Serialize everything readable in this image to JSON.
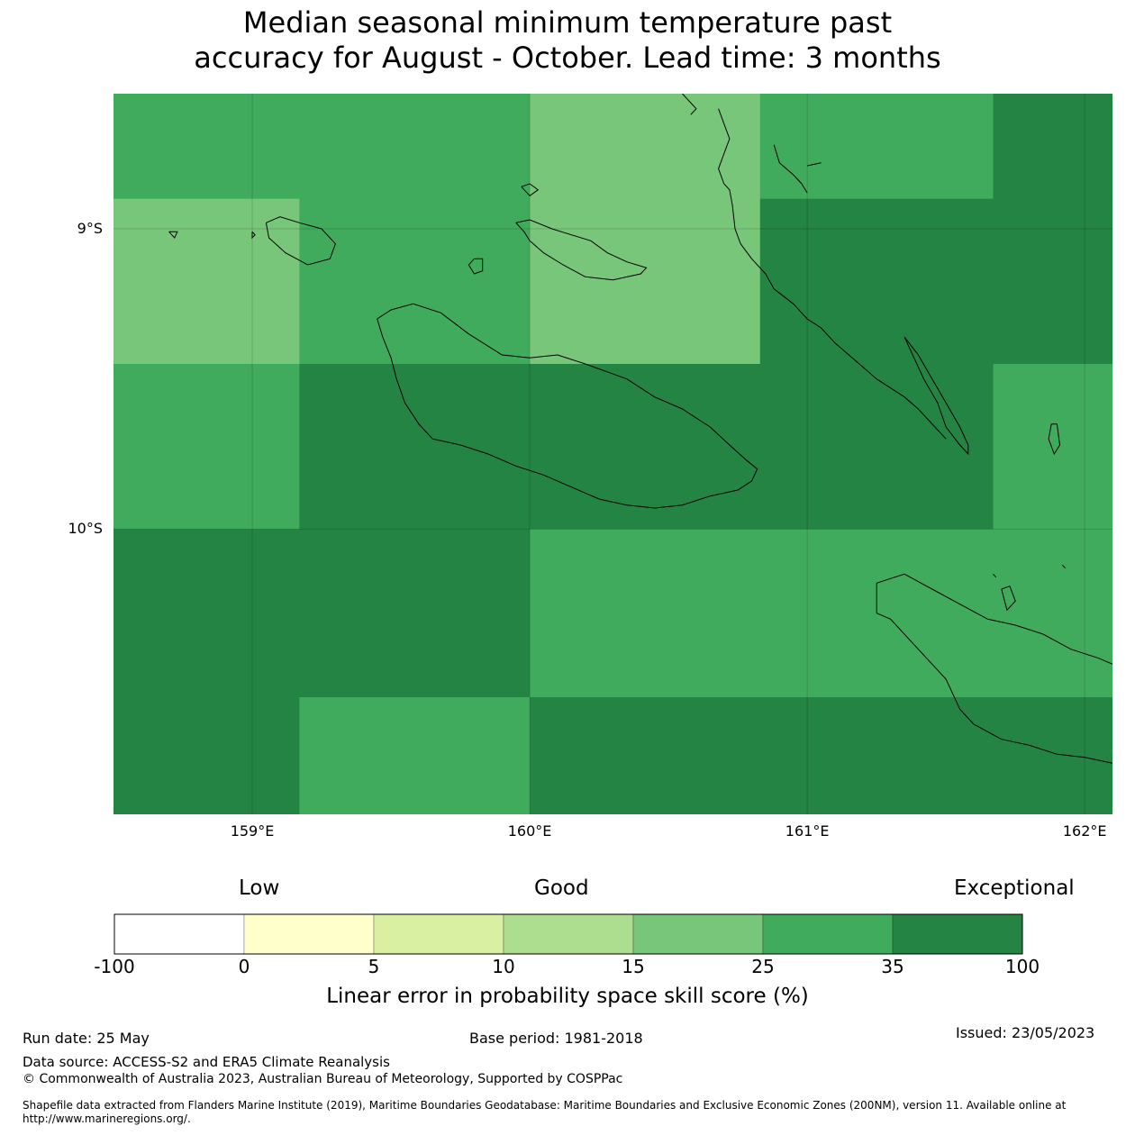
{
  "title_line1": "Median seasonal minimum temperature past",
  "title_line2": "accuracy for August - October. Lead time: 3 months",
  "colors": {
    "lvl_minus100_0": "#ffffff",
    "lvl_0_5": "#ffffcc",
    "lvl_5_10": "#d9f0a3",
    "lvl_10_15": "#addd8e",
    "lvl_15_25": "#78c679",
    "lvl_25_35": "#41ab5d",
    "lvl_35_100": "#238443"
  },
  "map": {
    "lon_range": [
      158.5,
      162.1
    ],
    "lat_range": [
      -10.95,
      -8.55
    ],
    "lat_ticks": [
      {
        "value": -9,
        "label": "9°S"
      },
      {
        "value": -10,
        "label": "10°S"
      }
    ],
    "lon_ticks": [
      {
        "value": 159,
        "label": "159°E"
      },
      {
        "value": 160,
        "label": "160°E"
      },
      {
        "value": 161,
        "label": "161°E"
      },
      {
        "value": 162,
        "label": "162°E"
      }
    ],
    "cells": [
      {
        "lon": [
          158.5,
          160.0
        ],
        "lat": [
          -8.9,
          -8.55
        ],
        "level": "lvl_25_35"
      },
      {
        "lon": [
          160.0,
          160.83
        ],
        "lat": [
          -8.9,
          -8.55
        ],
        "level": "lvl_15_25"
      },
      {
        "lon": [
          160.83,
          161.67
        ],
        "lat": [
          -8.9,
          -8.55
        ],
        "level": "lvl_25_35"
      },
      {
        "lon": [
          161.67,
          162.1
        ],
        "lat": [
          -8.9,
          -8.55
        ],
        "level": "lvl_35_100"
      },
      {
        "lon": [
          158.5,
          159.17
        ],
        "lat": [
          -9.45,
          -8.9
        ],
        "level": "lvl_15_25"
      },
      {
        "lon": [
          159.17,
          160.0
        ],
        "lat": [
          -9.45,
          -8.9
        ],
        "level": "lvl_25_35"
      },
      {
        "lon": [
          160.0,
          160.83
        ],
        "lat": [
          -9.45,
          -8.9
        ],
        "level": "lvl_15_25"
      },
      {
        "lon": [
          160.83,
          162.1
        ],
        "lat": [
          -9.45,
          -8.9
        ],
        "level": "lvl_35_100"
      },
      {
        "lon": [
          158.5,
          159.17
        ],
        "lat": [
          -10.0,
          -9.45
        ],
        "level": "lvl_25_35"
      },
      {
        "lon": [
          159.17,
          161.67
        ],
        "lat": [
          -10.0,
          -9.45
        ],
        "level": "lvl_35_100"
      },
      {
        "lon": [
          161.67,
          162.1
        ],
        "lat": [
          -10.0,
          -9.45
        ],
        "level": "lvl_25_35"
      },
      {
        "lon": [
          158.5,
          160.0
        ],
        "lat": [
          -10.56,
          -10.0
        ],
        "level": "lvl_35_100"
      },
      {
        "lon": [
          160.0,
          162.1
        ],
        "lat": [
          -10.56,
          -10.0
        ],
        "level": "lvl_25_35"
      },
      {
        "lon": [
          158.5,
          159.17
        ],
        "lat": [
          -10.95,
          -10.56
        ],
        "level": "lvl_35_100"
      },
      {
        "lon": [
          159.17,
          160.0
        ],
        "lat": [
          -10.95,
          -10.56
        ],
        "level": "lvl_25_35"
      },
      {
        "lon": [
          160.0,
          162.1
        ],
        "lat": [
          -10.95,
          -10.56
        ],
        "level": "lvl_35_100"
      }
    ],
    "coastlines": [
      {
        "lon": [
          159.45,
          159.5,
          159.58,
          159.68,
          159.78,
          159.9,
          160.0,
          160.1,
          160.2,
          160.35,
          160.45,
          160.55,
          160.65,
          160.72,
          160.78,
          160.82,
          160.8,
          160.75,
          160.65,
          160.55,
          160.45,
          160.35,
          160.25,
          160.15,
          160.05,
          159.95,
          159.85,
          159.75,
          159.65,
          159.6,
          159.55,
          159.52,
          159.5,
          159.47,
          159.45
        ],
        "lat": [
          -9.3,
          -9.27,
          -9.25,
          -9.28,
          -9.35,
          -9.42,
          -9.43,
          -9.42,
          -9.45,
          -9.5,
          -9.56,
          -9.6,
          -9.66,
          -9.72,
          -9.77,
          -9.8,
          -9.84,
          -9.87,
          -9.89,
          -9.92,
          -9.93,
          -9.92,
          -9.9,
          -9.86,
          -9.82,
          -9.79,
          -9.75,
          -9.72,
          -9.7,
          -9.65,
          -9.58,
          -9.5,
          -9.43,
          -9.36,
          -9.3
        ]
      },
      {
        "lon": [
          159.95,
          160.0,
          160.08,
          160.15,
          160.22,
          160.28,
          160.35,
          160.42,
          160.4,
          160.3,
          160.2,
          160.12,
          160.05,
          160.0,
          159.98,
          159.95
        ],
        "lat": [
          -8.98,
          -8.97,
          -9.0,
          -9.02,
          -9.04,
          -9.08,
          -9.11,
          -9.13,
          -9.15,
          -9.17,
          -9.16,
          -9.12,
          -9.08,
          -9.04,
          -9.01,
          -8.98
        ]
      },
      {
        "lon": [
          159.05,
          159.1,
          159.17,
          159.25,
          159.3,
          159.28,
          159.2,
          159.12,
          159.06,
          159.05
        ],
        "lat": [
          -8.98,
          -8.96,
          -8.98,
          -9.0,
          -9.05,
          -9.1,
          -9.12,
          -9.08,
          -9.03,
          -8.98
        ]
      },
      {
        "lon": [
          159.8,
          159.83,
          159.83,
          159.8,
          159.78,
          159.8
        ],
        "lat": [
          -9.1,
          -9.1,
          -9.14,
          -9.15,
          -9.12,
          -9.1
        ]
      },
      {
        "lon": [
          158.7,
          158.73,
          158.72,
          158.7
        ],
        "lat": [
          -9.01,
          -9.01,
          -9.03,
          -9.01
        ]
      },
      {
        "lon": [
          159.0,
          159.01,
          159.0,
          159.0
        ],
        "lat": [
          -9.01,
          -9.02,
          -9.03,
          -9.01
        ]
      },
      {
        "lon": [
          159.97,
          160.0,
          160.03,
          160.0,
          159.97
        ],
        "lat": [
          -8.86,
          -8.85,
          -8.87,
          -8.89,
          -8.86
        ]
      },
      {
        "lon": [
          160.68,
          160.7,
          160.72,
          160.7,
          160.68,
          160.7,
          160.72,
          160.73,
          160.74,
          160.76,
          160.8,
          160.85,
          160.88,
          160.95,
          161.0,
          161.05,
          161.1,
          161.15,
          161.2,
          161.25,
          161.3,
          161.35,
          161.4,
          161.45,
          161.5
        ],
        "lat": [
          -8.6,
          -8.65,
          -8.7,
          -8.75,
          -8.8,
          -8.85,
          -8.87,
          -8.92,
          -9.0,
          -9.05,
          -9.1,
          -9.15,
          -9.2,
          -9.25,
          -9.3,
          -9.33,
          -9.38,
          -9.42,
          -9.46,
          -9.5,
          -9.53,
          -9.56,
          -9.6,
          -9.65,
          -9.7
        ]
      },
      {
        "lon": [
          160.55,
          160.6,
          160.58
        ],
        "lat": [
          -8.55,
          -8.6,
          -8.62
        ]
      },
      {
        "lon": [
          160.88,
          160.9,
          160.95,
          160.98,
          161.0
        ],
        "lat": [
          -8.72,
          -8.78,
          -8.82,
          -8.85,
          -8.88
        ]
      },
      {
        "lon": [
          161.0,
          161.05
        ],
        "lat": [
          -8.79,
          -8.78
        ]
      },
      {
        "lon": [
          161.35,
          161.4,
          161.45,
          161.5,
          161.55,
          161.58,
          161.58,
          161.55,
          161.5,
          161.47,
          161.42,
          161.38,
          161.35
        ],
        "lat": [
          -9.36,
          -9.42,
          -9.5,
          -9.58,
          -9.66,
          -9.72,
          -9.75,
          -9.72,
          -9.66,
          -9.58,
          -9.5,
          -9.42,
          -9.36
        ]
      },
      {
        "lon": [
          161.88,
          161.9,
          161.91,
          161.89,
          161.87,
          161.88
        ],
        "lat": [
          -9.65,
          -9.65,
          -9.72,
          -9.75,
          -9.7,
          -9.65
        ]
      },
      {
        "lon": [
          161.25,
          161.35,
          161.45,
          161.55,
          161.65,
          161.75,
          161.85,
          161.95,
          162.05,
          162.1
        ],
        "lat": [
          -10.18,
          -10.15,
          -10.2,
          -10.25,
          -10.3,
          -10.32,
          -10.35,
          -10.4,
          -10.43,
          -10.45
        ]
      },
      {
        "lon": [
          161.25,
          161.3,
          161.4,
          161.5,
          161.55,
          161.6,
          161.7,
          161.8,
          161.9,
          162.0,
          162.1
        ],
        "lat": [
          -10.28,
          -10.3,
          -10.4,
          -10.5,
          -10.6,
          -10.65,
          -10.7,
          -10.72,
          -10.75,
          -10.76,
          -10.78
        ]
      },
      {
        "lon": [
          161.25,
          161.25,
          161.25
        ],
        "lat": [
          -10.18,
          -10.22,
          -10.28
        ]
      },
      {
        "lon": [
          161.7,
          161.73,
          161.75,
          161.72,
          161.7
        ],
        "lat": [
          -10.2,
          -10.19,
          -10.24,
          -10.27,
          -10.2
        ]
      },
      {
        "lon": [
          161.67,
          161.68
        ],
        "lat": [
          -10.15,
          -10.16
        ]
      },
      {
        "lon": [
          161.92,
          161.93
        ],
        "lat": [
          -10.12,
          -10.13
        ]
      }
    ]
  },
  "legend": {
    "category_low": "Low",
    "category_good": "Good",
    "category_exceptional": "Exceptional",
    "bins": [
      "lvl_minus100_0",
      "lvl_0_5",
      "lvl_5_10",
      "lvl_10_15",
      "lvl_15_25",
      "lvl_25_35",
      "lvl_35_100"
    ],
    "tick_labels": [
      "-100",
      "0",
      "5",
      "10",
      "15",
      "25",
      "35",
      "100"
    ],
    "title": "Linear error in probability space skill score (%)"
  },
  "footer": {
    "run_date": "Run date: 25 May",
    "base_period": "Base period: 1981-2018",
    "issued": "Issued: 23/05/2023",
    "data_source": "Data source: ACCESS-S2 and ERA5 Climate Reanalysis",
    "copyright": "© Commonwealth of Australia 2023, Australian Bureau of Meteorology, Supported by COSPPac",
    "shapefile_line1": "Shapefile data extracted from Flanders Marine Institute (2019), Maritime Boundaries Geodatabase: Maritime Boundaries and Exclusive Economic Zones (200NM), version 11. Available online at",
    "shapefile_line2": "http://www.marineregions.org/."
  }
}
